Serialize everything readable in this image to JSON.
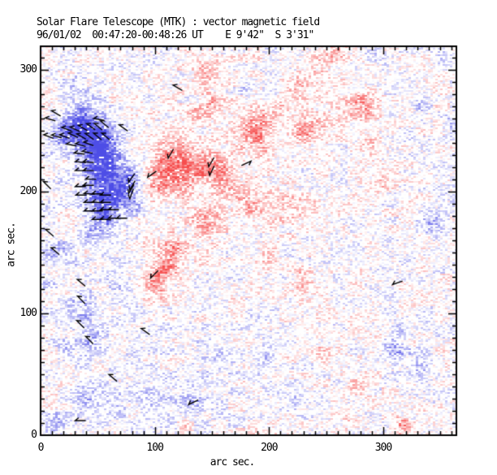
{
  "header": {
    "title": "Solar Flare Telescope (MTK) : vector magnetic field",
    "subtitle": "96/01/02  00:47:20-00:48:26 UT    E 9'42\"  S 3'31\""
  },
  "chart_data": {
    "type": "heatmap",
    "title": "Solar Flare Telescope (MTK) : vector magnetic field",
    "subtitle": "96/01/02  00:47:20-00:48:26 UT    E 9'42\"  S 3'31\"",
    "xlabel": "arc sec.",
    "ylabel": "arc sec.",
    "xlim": [
      0,
      364
    ],
    "ylim": [
      0,
      319
    ],
    "xticks_major": [
      0,
      100,
      200,
      300
    ],
    "yticks_major": [
      0,
      100,
      200,
      300
    ],
    "minor_tick_step": 10,
    "grid": false,
    "legend": "none",
    "colors": {
      "positive_hex": "#f56060",
      "negative_hex": "#4040e0",
      "positive_rgb": "245,64,64",
      "negative_rgb": "64,64,228",
      "vector_color": "#000000",
      "background": "#ffffff"
    },
    "polarity_note": "red = positive polarity, blue = negative polarity, black segments = transverse field vectors",
    "blob_format": [
      "x_arcsec",
      "y_arcsec",
      "amplitude(+red/-blue)",
      "sigma_arcsec"
    ],
    "blobs": [
      [
        120,
        215,
        0.1,
        55
      ],
      [
        48,
        215,
        -0.1,
        40
      ],
      [
        90,
        40,
        -0.07,
        50
      ],
      [
        260,
        300,
        0.06,
        45
      ],
      [
        25,
        250,
        -0.5,
        10
      ],
      [
        40,
        250,
        -0.75,
        11
      ],
      [
        54,
        243,
        -0.85,
        10
      ],
      [
        34,
        257,
        -0.55,
        8
      ],
      [
        50,
        228,
        -0.8,
        9
      ],
      [
        52,
        210,
        -0.85,
        9
      ],
      [
        55,
        193,
        -0.8,
        9
      ],
      [
        58,
        177,
        -0.72,
        9
      ],
      [
        64,
        222,
        -0.65,
        8
      ],
      [
        14,
        246,
        -0.35,
        7
      ],
      [
        67,
        200,
        -0.55,
        7
      ],
      [
        45,
        165,
        -0.4,
        7
      ],
      [
        78,
        210,
        -0.6,
        8
      ],
      [
        80,
        192,
        -0.5,
        8
      ],
      [
        112,
        228,
        0.72,
        11
      ],
      [
        104,
        206,
        0.65,
        10
      ],
      [
        126,
        215,
        0.6,
        9
      ],
      [
        148,
        219,
        0.65,
        10
      ],
      [
        162,
        210,
        0.55,
        8
      ],
      [
        188,
        250,
        0.68,
        10
      ],
      [
        150,
        272,
        0.5,
        7
      ],
      [
        144,
        299,
        0.42,
        7
      ],
      [
        134,
        264,
        0.4,
        5
      ],
      [
        228,
        247,
        0.45,
        7
      ],
      [
        226,
        284,
        0.3,
        7
      ],
      [
        145,
        176,
        0.6,
        9
      ],
      [
        118,
        151,
        0.62,
        8
      ],
      [
        108,
        135,
        0.68,
        8
      ],
      [
        98,
        121,
        0.58,
        8
      ],
      [
        183,
        190,
        0.5,
        10
      ],
      [
        220,
        186,
        0.32,
        11
      ],
      [
        210,
        268,
        0.35,
        5
      ],
      [
        240,
        252,
        0.3,
        9
      ],
      [
        196,
        232,
        0.45,
        7
      ],
      [
        190,
        263,
        0.35,
        6
      ],
      [
        280,
        268,
        0.68,
        9
      ],
      [
        290,
        238,
        0.42,
        6
      ],
      [
        299,
        206,
        0.32,
        5
      ],
      [
        246,
        308,
        0.5,
        6
      ],
      [
        258,
        313,
        0.35,
        5
      ],
      [
        240,
        188,
        0.32,
        5
      ],
      [
        359,
        253,
        -0.38,
        6
      ],
      [
        343,
        173,
        -0.45,
        7
      ],
      [
        333,
        271,
        -0.28,
        5
      ],
      [
        352,
        310,
        -0.3,
        7
      ],
      [
        14,
        151,
        -0.42,
        7
      ],
      [
        25,
        144,
        -0.35,
        6
      ],
      [
        39,
        105,
        -0.5,
        9
      ],
      [
        44,
        76,
        -0.48,
        8
      ],
      [
        21,
        75,
        -0.33,
        6
      ],
      [
        72,
        115,
        -0.22,
        14
      ],
      [
        40,
        30,
        -0.38,
        8
      ],
      [
        64,
        29,
        -0.33,
        7
      ],
      [
        96,
        27,
        -0.42,
        8
      ],
      [
        130,
        26,
        -0.46,
        9
      ],
      [
        14,
        11,
        -0.38,
        7
      ],
      [
        7,
        125,
        -0.28,
        6
      ],
      [
        199,
        146,
        0.34,
        6
      ],
      [
        229,
        128,
        0.42,
        7
      ],
      [
        281,
        135,
        0.28,
        4
      ],
      [
        313,
        87,
        -0.34,
        5
      ],
      [
        312,
        70,
        -0.46,
        8
      ],
      [
        194,
        63,
        -0.38,
        7
      ],
      [
        246,
        71,
        0.3,
        5
      ],
      [
        278,
        41,
        0.42,
        6
      ],
      [
        228,
        28,
        -0.34,
        6
      ],
      [
        317,
        8,
        0.55,
        6
      ],
      [
        331,
        55,
        -0.28,
        7
      ],
      [
        157,
        58,
        -0.2,
        11
      ],
      [
        127,
        8,
        0.25,
        4
      ],
      [
        270,
        12,
        0.2,
        5
      ],
      [
        39,
        278,
        -0.33,
        8
      ],
      [
        26,
        289,
        -0.25,
        6
      ],
      [
        295,
        305,
        -0.22,
        8
      ],
      [
        178,
        286,
        -0.3,
        6
      ]
    ],
    "vector_format": [
      "x_arcsec",
      "y_arcsec",
      "tilt_deg"
    ],
    "vectors": [
      [
        13.5,
        264,
        -30
      ],
      [
        8.5,
        259,
        -15
      ],
      [
        22.8,
        251,
        -20
      ],
      [
        30,
        251,
        -25
      ],
      [
        37,
        252,
        -30
      ],
      [
        44,
        253,
        -35
      ],
      [
        50.5,
        253,
        -40
      ],
      [
        56,
        255,
        -40
      ],
      [
        51,
        259,
        -10
      ],
      [
        72.5,
        252,
        -35
      ],
      [
        7,
        245,
        -20
      ],
      [
        14,
        245,
        -15
      ],
      [
        21,
        245,
        -20
      ],
      [
        28.5,
        246,
        -25
      ],
      [
        35.6,
        245,
        -30
      ],
      [
        42.7,
        245,
        -35
      ],
      [
        49.8,
        245,
        -40
      ],
      [
        57,
        245,
        -40
      ],
      [
        27,
        238,
        -10
      ],
      [
        35,
        238,
        -15
      ],
      [
        42,
        239,
        -20
      ],
      [
        34,
        231,
        -5
      ],
      [
        41,
        232,
        -10
      ],
      [
        35,
        224,
        -5
      ],
      [
        42,
        224,
        -5
      ],
      [
        35,
        217,
        0
      ],
      [
        42,
        217,
        0
      ],
      [
        44,
        210,
        0
      ],
      [
        79.7,
        211,
        55
      ],
      [
        80.4,
        205,
        60
      ],
      [
        79.5,
        202,
        60
      ],
      [
        35,
        204,
        0
      ],
      [
        42,
        205,
        0
      ],
      [
        35.6,
        197,
        0
      ],
      [
        42.7,
        198,
        -5
      ],
      [
        49.8,
        198,
        0
      ],
      [
        57,
        197,
        0
      ],
      [
        79.7,
        198,
        70
      ],
      [
        42.7,
        191,
        0
      ],
      [
        49.8,
        191,
        -5
      ],
      [
        57,
        191,
        0
      ],
      [
        42.7,
        184,
        0
      ],
      [
        49.8,
        184,
        0
      ],
      [
        57,
        185,
        0
      ],
      [
        64,
        185,
        0
      ],
      [
        49.8,
        177,
        0
      ],
      [
        57,
        177,
        -5
      ],
      [
        64,
        178,
        0
      ],
      [
        71.2,
        178,
        0
      ],
      [
        5.7,
        205,
        -45
      ],
      [
        7.8,
        166,
        -40
      ],
      [
        120,
        285,
        -30
      ],
      [
        114,
        231,
        60
      ],
      [
        97.5,
        214,
        35
      ],
      [
        149.5,
        224,
        60
      ],
      [
        150,
        217,
        65
      ],
      [
        180,
        223,
        205
      ],
      [
        12.8,
        151,
        -40
      ],
      [
        35.6,
        125,
        -40
      ],
      [
        35.6,
        111,
        -45
      ],
      [
        34.9,
        91,
        -45
      ],
      [
        42.7,
        78,
        -45
      ],
      [
        99.6,
        132,
        45
      ],
      [
        91.8,
        85,
        -35
      ],
      [
        63.3,
        47,
        -40
      ],
      [
        133.8,
        27,
        25
      ],
      [
        34.9,
        12,
        0
      ],
      [
        312.5,
        125,
        20
      ]
    ],
    "noise": {
      "seed": 7,
      "fine_amp": 0.8,
      "coarse_amp": 0.36,
      "threshold": 0.13,
      "alpha_scale": 0.88,
      "alpha_max": 0.93,
      "dropout": 0.06
    }
  }
}
